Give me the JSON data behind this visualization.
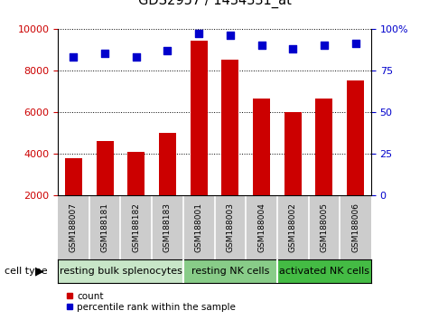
{
  "title": "GDS2957 / 1434331_at",
  "samples": [
    "GSM188007",
    "GSM188181",
    "GSM188182",
    "GSM188183",
    "GSM188001",
    "GSM188003",
    "GSM188004",
    "GSM188002",
    "GSM188005",
    "GSM188006"
  ],
  "counts": [
    3800,
    4600,
    4100,
    5000,
    9450,
    8500,
    6650,
    6000,
    6650,
    7500
  ],
  "percentiles": [
    83,
    85,
    83,
    87,
    97,
    96,
    90,
    88,
    90,
    91
  ],
  "bar_color": "#cc0000",
  "dot_color": "#0000cc",
  "groups": [
    {
      "label": "resting bulk splenocytes",
      "start": 0,
      "end": 4,
      "color": "#c8e6c8"
    },
    {
      "label": "resting NK cells",
      "start": 4,
      "end": 7,
      "color": "#88cc88"
    },
    {
      "label": "activated NK cells",
      "start": 7,
      "end": 10,
      "color": "#44bb44"
    }
  ],
  "ylim_left": [
    2000,
    10000
  ],
  "ylim_right": [
    0,
    100
  ],
  "yticks_left": [
    2000,
    4000,
    6000,
    8000,
    10000
  ],
  "yticks_right": [
    0,
    25,
    50,
    75,
    100
  ],
  "ytick_right_labels": [
    "0",
    "25",
    "50",
    "75",
    "100%"
  ],
  "cell_type_label": "cell type",
  "legend_count_label": "count",
  "legend_pct_label": "percentile rank within the sample",
  "bg_color": "#ffffff",
  "tick_bg_color": "#cccccc"
}
